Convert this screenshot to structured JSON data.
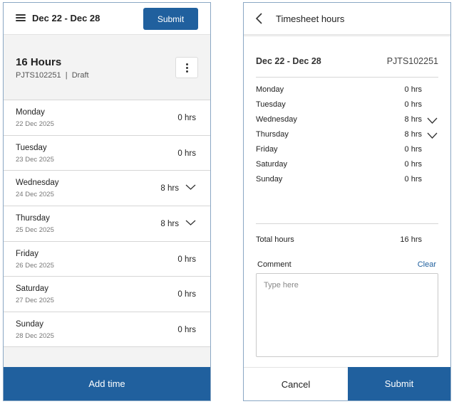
{
  "list_screen": {
    "header": {
      "date_range": "Dec 22 - Dec 28",
      "submit_label": "Submit"
    },
    "summary": {
      "hours": "16 Hours",
      "project": "PJTS102251",
      "separator": "|",
      "status": "Draft"
    },
    "days": [
      {
        "name": "Monday",
        "date": "22 Dec 2025",
        "hours": "0 hrs",
        "expandable": false
      },
      {
        "name": "Tuesday",
        "date": "23 Dec 2025",
        "hours": "0 hrs",
        "expandable": false
      },
      {
        "name": "Wednesday",
        "date": "24 Dec 2025",
        "hours": "8 hrs",
        "expandable": true
      },
      {
        "name": "Thursday",
        "date": "25 Dec 2025",
        "hours": "8 hrs",
        "expandable": true
      },
      {
        "name": "Friday",
        "date": "26 Dec 2025",
        "hours": "0 hrs",
        "expandable": false
      },
      {
        "name": "Saturday",
        "date": "27 Dec 2025",
        "hours": "0 hrs",
        "expandable": false
      },
      {
        "name": "Sunday",
        "date": "28 Dec 2025",
        "hours": "0 hrs",
        "expandable": false
      }
    ],
    "add_time_label": "Add time"
  },
  "detail_screen": {
    "header": {
      "title": "Timesheet hours"
    },
    "date_range": "Dec 22 - Dec 28",
    "project": "PJTS102251",
    "days": [
      {
        "name": "Monday",
        "hours": "0 hrs",
        "expandable": false
      },
      {
        "name": "Tuesday",
        "hours": "0 hrs",
        "expandable": false
      },
      {
        "name": "Wednesday",
        "hours": "8 hrs",
        "expandable": true
      },
      {
        "name": "Thursday",
        "hours": "8 hrs",
        "expandable": true
      },
      {
        "name": "Friday",
        "hours": "0 hrs",
        "expandable": false
      },
      {
        "name": "Saturday",
        "hours": "0 hrs",
        "expandable": false
      },
      {
        "name": "Sunday",
        "hours": "0 hrs",
        "expandable": false
      }
    ],
    "total_label": "Total hours",
    "total_value": "16 hrs",
    "comment_label": "Comment",
    "clear_label": "Clear",
    "comment_value": "",
    "comment_placeholder": "Type here",
    "cancel_label": "Cancel",
    "submit_label": "Submit"
  },
  "colors": {
    "primary": "#20609e",
    "background": "#f3f3f3",
    "divider": "#d6d6d6"
  },
  "icons": [
    "menu-icon",
    "more-vertical-icon",
    "chevron-down-icon",
    "chevron-left-icon"
  ]
}
